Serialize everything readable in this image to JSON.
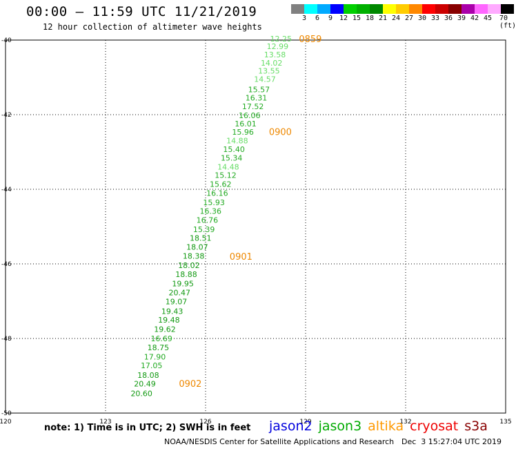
{
  "header": {
    "title": "00:00 — 11:59 UTC 11/21/2019",
    "subtitle": "12 hour collection of altimeter wave heights"
  },
  "colorbar": {
    "colors": [
      "#808080",
      "#00ffff",
      "#00aaff",
      "#0000ff",
      "#00d000",
      "#00b000",
      "#008800",
      "#ffff00",
      "#ffcc00",
      "#ff8800",
      "#ff0000",
      "#cc0000",
      "#880000",
      "#aa00aa",
      "#ff66ff",
      "#ffaaff",
      "#000000"
    ],
    "labels": [
      "3",
      "6",
      "9",
      "12",
      "15",
      "18",
      "21",
      "24",
      "27",
      "30",
      "33",
      "36",
      "39",
      "42",
      "45",
      "70 (ft)"
    ]
  },
  "chart_data": {
    "type": "scatter",
    "xlim": [
      120,
      135
    ],
    "ylim": [
      -50,
      -40
    ],
    "xticks": [
      "120",
      "123",
      "126",
      "129",
      "132",
      "135"
    ],
    "yticks": [
      "-40",
      "-42",
      "-44",
      "-46",
      "-48",
      "-50"
    ],
    "grid": true,
    "points": [
      {
        "lon": 128.26,
        "lat": -39.96,
        "swh": "12.25",
        "color": "#66dd66"
      },
      {
        "lon": 128.16,
        "lat": -40.17,
        "swh": "12.99",
        "color": "#66dd66"
      },
      {
        "lon": 128.08,
        "lat": -40.39,
        "swh": "13.58",
        "color": "#66dd66"
      },
      {
        "lon": 127.98,
        "lat": -40.61,
        "swh": "14.02",
        "color": "#66dd66"
      },
      {
        "lon": 127.9,
        "lat": -40.82,
        "swh": "13.55",
        "color": "#66dd66"
      },
      {
        "lon": 127.78,
        "lat": -41.05,
        "swh": "14.57",
        "color": "#66dd66"
      },
      {
        "lon": 127.6,
        "lat": -41.32,
        "swh": "15.57",
        "color": "#22aa22"
      },
      {
        "lon": 127.52,
        "lat": -41.55,
        "swh": "16.31",
        "color": "#22aa22"
      },
      {
        "lon": 127.42,
        "lat": -41.78,
        "swh": "17.52",
        "color": "#22aa22"
      },
      {
        "lon": 127.32,
        "lat": -42.02,
        "swh": "16.06",
        "color": "#22aa22"
      },
      {
        "lon": 127.2,
        "lat": -42.24,
        "swh": "16.01",
        "color": "#22aa22"
      },
      {
        "lon": 127.12,
        "lat": -42.46,
        "swh": "15.96",
        "color": "#22aa22"
      },
      {
        "lon": 126.95,
        "lat": -42.69,
        "swh": "14.88",
        "color": "#66dd66"
      },
      {
        "lon": 126.85,
        "lat": -42.93,
        "swh": "15.40",
        "color": "#22aa22"
      },
      {
        "lon": 126.78,
        "lat": -43.16,
        "swh": "15.34",
        "color": "#22aa22"
      },
      {
        "lon": 126.68,
        "lat": -43.4,
        "swh": "14.48",
        "color": "#66dd66"
      },
      {
        "lon": 126.6,
        "lat": -43.62,
        "swh": "15.12",
        "color": "#22aa22"
      },
      {
        "lon": 126.45,
        "lat": -43.86,
        "swh": "15.62",
        "color": "#22aa22"
      },
      {
        "lon": 126.35,
        "lat": -44.1,
        "swh": "16.16",
        "color": "#22aa22"
      },
      {
        "lon": 126.25,
        "lat": -44.35,
        "swh": "15.93",
        "color": "#22aa22"
      },
      {
        "lon": 126.15,
        "lat": -44.58,
        "swh": "16.36",
        "color": "#22aa22"
      },
      {
        "lon": 126.05,
        "lat": -44.82,
        "swh": "16.76",
        "color": "#22aa22"
      },
      {
        "lon": 125.95,
        "lat": -45.07,
        "swh": "15.39",
        "color": "#22aa22"
      },
      {
        "lon": 125.85,
        "lat": -45.31,
        "swh": "18.51",
        "color": "#119911"
      },
      {
        "lon": 125.75,
        "lat": -45.55,
        "swh": "18.07",
        "color": "#119911"
      },
      {
        "lon": 125.64,
        "lat": -45.79,
        "swh": "18.38",
        "color": "#119911"
      },
      {
        "lon": 125.5,
        "lat": -46.04,
        "swh": "18.02",
        "color": "#119911"
      },
      {
        "lon": 125.42,
        "lat": -46.28,
        "swh": "18.88",
        "color": "#119911"
      },
      {
        "lon": 125.32,
        "lat": -46.53,
        "swh": "19.95",
        "color": "#119911"
      },
      {
        "lon": 125.22,
        "lat": -46.77,
        "swh": "20.47",
        "color": "#119911"
      },
      {
        "lon": 125.12,
        "lat": -47.01,
        "swh": "19.07",
        "color": "#119911"
      },
      {
        "lon": 125.0,
        "lat": -47.27,
        "swh": "19.43",
        "color": "#119911"
      },
      {
        "lon": 124.9,
        "lat": -47.5,
        "swh": "19.48",
        "color": "#119911"
      },
      {
        "lon": 124.78,
        "lat": -47.75,
        "swh": "19.62",
        "color": "#119911"
      },
      {
        "lon": 124.68,
        "lat": -48.0,
        "swh": "16.69",
        "color": "#22aa22"
      },
      {
        "lon": 124.58,
        "lat": -48.24,
        "swh": "18.75",
        "color": "#119911"
      },
      {
        "lon": 124.48,
        "lat": -48.49,
        "swh": "17.90",
        "color": "#22aa22"
      },
      {
        "lon": 124.38,
        "lat": -48.72,
        "swh": "17.05",
        "color": "#22aa22"
      },
      {
        "lon": 124.28,
        "lat": -48.98,
        "swh": "18.08",
        "color": "#119911"
      },
      {
        "lon": 124.18,
        "lat": -49.21,
        "swh": "20.49",
        "color": "#119911"
      },
      {
        "lon": 124.08,
        "lat": -49.47,
        "swh": "20.60",
        "color": "#119911"
      }
    ],
    "time_labels": [
      {
        "lon": 128.8,
        "lat": -39.96,
        "text": "0859"
      },
      {
        "lon": 127.9,
        "lat": -42.45,
        "text": "0900"
      },
      {
        "lon": 126.72,
        "lat": -45.8,
        "text": "0901"
      },
      {
        "lon": 125.2,
        "lat": -49.2,
        "text": "0902"
      }
    ],
    "time_label_color": "#ee8800"
  },
  "footer": {
    "note": "note: 1) Time is in UTC; 2) SWH is in feet",
    "legend": [
      {
        "name": "jason2",
        "color": "#0000dd"
      },
      {
        "name": "jason3",
        "color": "#00aa00"
      },
      {
        "name": "altika",
        "color": "#ff9900"
      },
      {
        "name": "cryosat",
        "color": "#ee0000"
      },
      {
        "name": "s3a",
        "color": "#880000"
      }
    ],
    "credit": "NOAA/NESDIS Center for Satellite Applications and Research",
    "date": "Dec  3 15:27:04 UTC 2019"
  }
}
